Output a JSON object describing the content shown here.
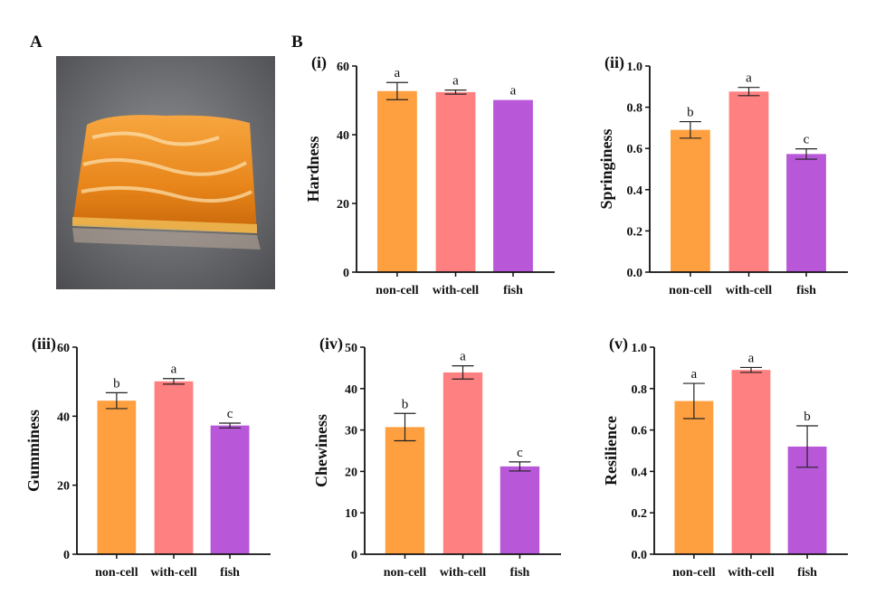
{
  "figure": {
    "panel_a_label": "A",
    "panel_b_label": "B",
    "photo_icon": "orange-gel-sample-photo"
  },
  "colors": {
    "non-cell": "#FFA040",
    "with-cell": "#FF8080",
    "fish": "#B857D8"
  },
  "chart_data": [
    {
      "type": "bar",
      "panel": "(i)",
      "ylabel": "Hardness",
      "categories": [
        "non-cell",
        "with-cell",
        "fish"
      ],
      "values": [
        52.7,
        52.4,
        50.1
      ],
      "errors": [
        2.5,
        0.6,
        0
      ],
      "letters": [
        "a",
        "a",
        "a"
      ],
      "ylim": [
        0,
        60
      ],
      "yticks": [
        "0",
        "20",
        "40",
        "60"
      ],
      "grid": false
    },
    {
      "type": "bar",
      "panel": "(ii)",
      "ylabel": "Springiness",
      "categories": [
        "non-cell",
        "with-cell",
        "fish"
      ],
      "values": [
        0.69,
        0.876,
        0.573
      ],
      "errors": [
        0.04,
        0.02,
        0.025
      ],
      "letters": [
        "b",
        "a",
        "c"
      ],
      "ylim": [
        0,
        1.0
      ],
      "yticks": [
        "0.0",
        "0.2",
        "0.4",
        "0.6",
        "0.8",
        "1.0"
      ],
      "grid": false
    },
    {
      "type": "bar",
      "panel": "(iii)",
      "ylabel": "Gumminess",
      "categories": [
        "non-cell",
        "with-cell",
        "fish"
      ],
      "values": [
        44.5,
        50.1,
        37.3
      ],
      "errors": [
        2.3,
        0.8,
        0.7
      ],
      "letters": [
        "b",
        "a",
        "c"
      ],
      "ylim": [
        0,
        60
      ],
      "yticks": [
        "0",
        "20",
        "40",
        "60"
      ],
      "grid": false
    },
    {
      "type": "bar",
      "panel": "(iv)",
      "ylabel": "Chewiness",
      "categories": [
        "non-cell",
        "with-cell",
        "fish"
      ],
      "values": [
        30.7,
        43.9,
        21.2
      ],
      "errors": [
        3.3,
        1.6,
        1.1
      ],
      "letters": [
        "b",
        "a",
        "c"
      ],
      "ylim": [
        0,
        50
      ],
      "yticks": [
        "0",
        "10",
        "20",
        "30",
        "40",
        "50"
      ],
      "grid": false
    },
    {
      "type": "bar",
      "panel": "(v)",
      "ylabel": "Resilience",
      "categories": [
        "non-cell",
        "with-cell",
        "fish"
      ],
      "values": [
        0.74,
        0.89,
        0.52
      ],
      "errors": [
        0.085,
        0.012,
        0.1
      ],
      "letters": [
        "a",
        "a",
        "b"
      ],
      "ylim": [
        0,
        1.0
      ],
      "yticks": [
        "0.0",
        "0.2",
        "0.4",
        "0.6",
        "0.8",
        "1.0"
      ],
      "grid": false
    }
  ]
}
